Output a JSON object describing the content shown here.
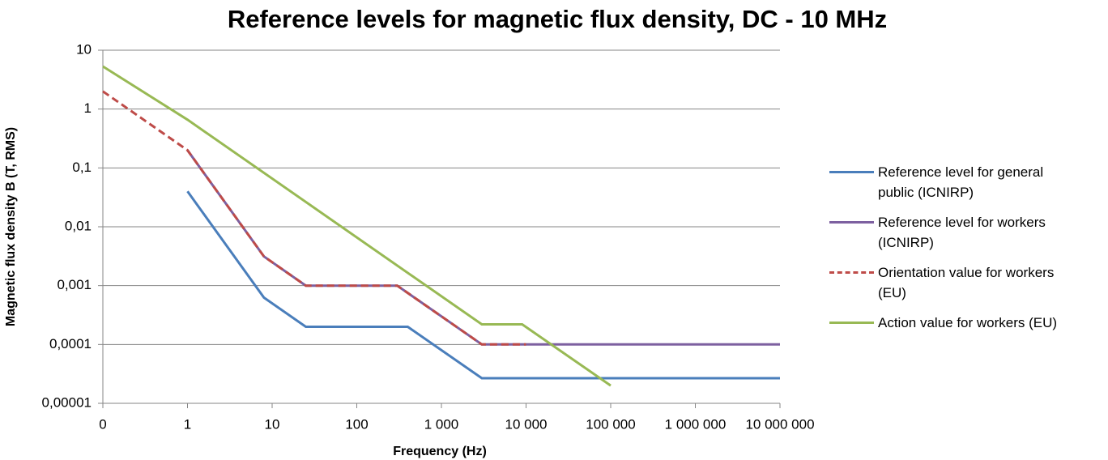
{
  "chart_data": {
    "type": "line",
    "title": "Reference levels for magnetic flux density, DC - 10 MHz",
    "x_label": "Frequency (Hz)",
    "y_label": "Magnetic flux density B (T, RMS)",
    "xscale": "log",
    "yscale": "log",
    "grid": true,
    "legend": "right",
    "xlim": [
      0.1,
      10000000
    ],
    "xticks": [
      {
        "value": 0.1,
        "label": "0"
      },
      1,
      10,
      100,
      {
        "value": 1000,
        "label": "1 000"
      },
      {
        "value": 10000,
        "label": "10 000"
      },
      {
        "value": 100000,
        "label": "100 000"
      },
      {
        "value": 1000000,
        "label": "1 000 000"
      },
      {
        "value": 10000000,
        "label": "10 000 000"
      }
    ],
    "ylim": [
      1e-05,
      10
    ],
    "yticks": [
      10,
      1,
      {
        "value": 0.1,
        "label": "0,1"
      },
      {
        "value": 0.01,
        "label": "0,01"
      },
      {
        "value": 0.001,
        "label": "0,001"
      },
      {
        "value": 0.0001,
        "label": "0,0001"
      },
      {
        "value": 1e-05,
        "label": "0,00001"
      }
    ],
    "series": [
      {
        "name": "Reference level for general public (ICNIRP)",
        "color": "#4a7ebb",
        "dash": false,
        "x": [
          1,
          8,
          25,
          400,
          3000,
          10000000
        ],
        "values": [
          0.04,
          0.000625,
          0.0002,
          0.0002,
          2.67e-05,
          2.67e-05
        ]
      },
      {
        "name": "Reference level for workers (ICNIRP)",
        "color": "#7d60a0",
        "dash": false,
        "x": [
          1,
          8,
          25,
          300,
          3000,
          10000000
        ],
        "values": [
          0.2,
          0.003125,
          0.001,
          0.001,
          0.0001,
          0.0001
        ]
      },
      {
        "name": "Orientation value for workers (EU)",
        "color": "#be4b48",
        "dash": true,
        "x": [
          0.1,
          1,
          8,
          25,
          300,
          3000,
          10000
        ],
        "values": [
          2,
          0.2,
          0.003125,
          0.001,
          0.001,
          0.0001,
          0.0001
        ]
      },
      {
        "name": "Action value for workers (EU)",
        "color": "#98b954",
        "dash": false,
        "x": [
          0.1,
          1,
          3000,
          9000,
          100000
        ],
        "values": [
          5.3,
          0.66,
          0.00022,
          0.00022,
          2e-05
        ]
      }
    ]
  }
}
